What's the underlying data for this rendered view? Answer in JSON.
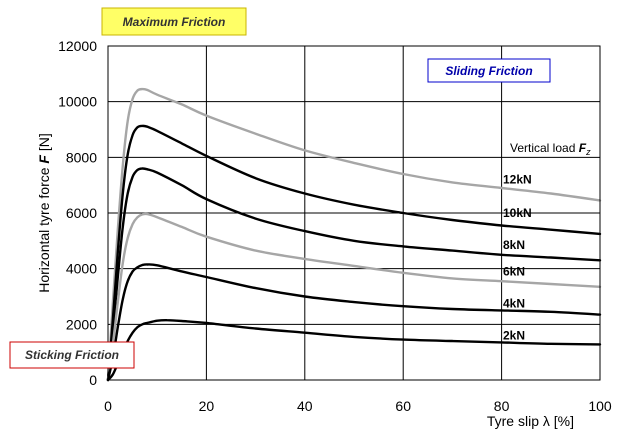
{
  "chart_data": {
    "type": "line",
    "xlabel": "Tyre slip λ [%]",
    "ylabel_prefix": "Horizontal tyre force ",
    "ylabel_var": "F",
    "ylabel_suffix": " [N]",
    "xlim": [
      0,
      100
    ],
    "ylim": [
      0,
      12000
    ],
    "xticks": [
      "0",
      "20",
      "40",
      "60",
      "80",
      "100"
    ],
    "yticks": [
      "0",
      "2000",
      "4000",
      "6000",
      "8000",
      "10000",
      "12000"
    ],
    "grid": true,
    "legend_title": "Vertical load",
    "legend_title_var": "F",
    "legend_title_sub": "z",
    "annotations": {
      "maximum_friction": "Maximum Friction",
      "sliding_friction": "Sliding Friction",
      "sticking_friction": "Sticking Friction"
    },
    "colors": {
      "black_series": "#000000",
      "gray_series": "#a6a6a6",
      "maximum_box_fill": "#ffff66",
      "maximum_box_border": "#c8b400",
      "sliding_box_border": "#0000cc",
      "sticking_box_border": "#cc0000"
    },
    "series": [
      {
        "name": "12kN",
        "color": "#a6a6a6",
        "label_y": 7200,
        "x": [
          0,
          1,
          2,
          3,
          4,
          5,
          6,
          7,
          8,
          10,
          15,
          20,
          30,
          40,
          50,
          60,
          70,
          80,
          90,
          100
        ],
        "y": [
          0,
          2800,
          5400,
          7700,
          9300,
          10100,
          10400,
          10450,
          10420,
          10250,
          9900,
          9500,
          8850,
          8250,
          7800,
          7400,
          7100,
          6900,
          6700,
          6450
        ]
      },
      {
        "name": "10kN",
        "color": "#000000",
        "label_y": 6000,
        "x": [
          0,
          1,
          2,
          3,
          4,
          5,
          6,
          7,
          8,
          10,
          15,
          20,
          30,
          40,
          50,
          60,
          70,
          80,
          90,
          100
        ],
        "y": [
          0,
          2200,
          4600,
          6700,
          8100,
          8800,
          9080,
          9130,
          9100,
          8950,
          8500,
          8050,
          7250,
          6700,
          6300,
          6000,
          5750,
          5550,
          5400,
          5250
        ]
      },
      {
        "name": "8kN",
        "color": "#000000",
        "label_y": 4850,
        "x": [
          0,
          1,
          2,
          3,
          4,
          5,
          6,
          7,
          8,
          10,
          15,
          20,
          30,
          40,
          50,
          60,
          70,
          80,
          90,
          100
        ],
        "y": [
          0,
          1800,
          3700,
          5500,
          6700,
          7300,
          7550,
          7600,
          7570,
          7450,
          7000,
          6500,
          5800,
          5350,
          5000,
          4800,
          4650,
          4500,
          4400,
          4300
        ]
      },
      {
        "name": "6kN",
        "color": "#a6a6a6",
        "label_y": 3900,
        "x": [
          0,
          1,
          2,
          3,
          4,
          5,
          6,
          7,
          8,
          10,
          15,
          20,
          30,
          40,
          50,
          60,
          70,
          80,
          90,
          100
        ],
        "y": [
          0,
          1300,
          2800,
          4200,
          5100,
          5600,
          5850,
          5950,
          5960,
          5850,
          5500,
          5150,
          4650,
          4350,
          4100,
          3850,
          3650,
          3550,
          3450,
          3350
        ]
      },
      {
        "name": "4kN",
        "color": "#000000",
        "label_y": 2750,
        "x": [
          0,
          1,
          2,
          3,
          4,
          5,
          6,
          7,
          8,
          10,
          15,
          20,
          30,
          40,
          50,
          60,
          70,
          80,
          90,
          100
        ],
        "y": [
          0,
          800,
          1900,
          2900,
          3550,
          3900,
          4050,
          4130,
          4150,
          4120,
          3900,
          3700,
          3300,
          3000,
          2800,
          2650,
          2550,
          2500,
          2450,
          2350
        ]
      },
      {
        "name": "2kN",
        "color": "#000000",
        "label_y": 1600,
        "x": [
          0,
          1,
          2,
          3,
          4,
          5,
          6,
          7,
          8,
          10,
          12,
          15,
          20,
          30,
          40,
          50,
          60,
          70,
          80,
          90,
          100
        ],
        "y": [
          0,
          200,
          600,
          1000,
          1400,
          1700,
          1900,
          2000,
          2050,
          2130,
          2150,
          2120,
          2050,
          1850,
          1700,
          1550,
          1450,
          1400,
          1350,
          1300,
          1280
        ]
      }
    ]
  }
}
